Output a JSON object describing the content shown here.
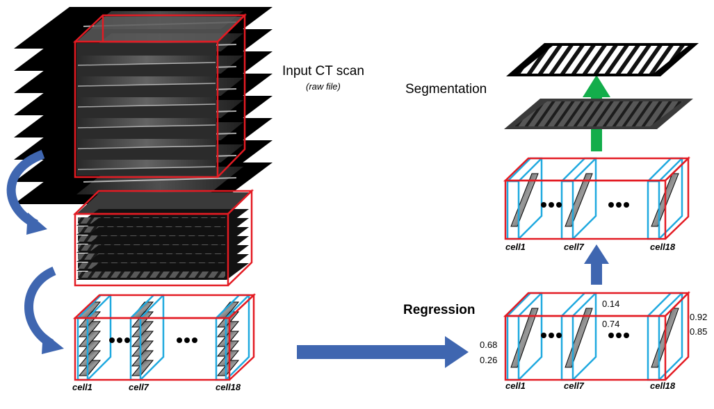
{
  "title": "Input CT scan",
  "subtitle": "(raw file)",
  "segmentation_label": "Segmentation",
  "regression_label": "Regression",
  "left_cells": [
    "cell1",
    "cell7",
    "cell18"
  ],
  "right_cells_top": [
    "cell1",
    "cell7",
    "cell18"
  ],
  "right_cells_bottom": [
    "cell1",
    "cell7",
    "cell18"
  ],
  "values": {
    "cell1_a": "0.68",
    "cell1_b": "0.26",
    "cell7_a": "0.14",
    "cell7_b": "0.74",
    "cell18_a": "0.92",
    "cell18_b": "0.85"
  },
  "dots": "•••",
  "colors": {
    "box_outline": "#e31b23",
    "cell_outline": "#1fa9df",
    "arrow_blue": "#3f66b0",
    "arrow_green": "#13ad4b",
    "slice_dark": "#000000"
  }
}
